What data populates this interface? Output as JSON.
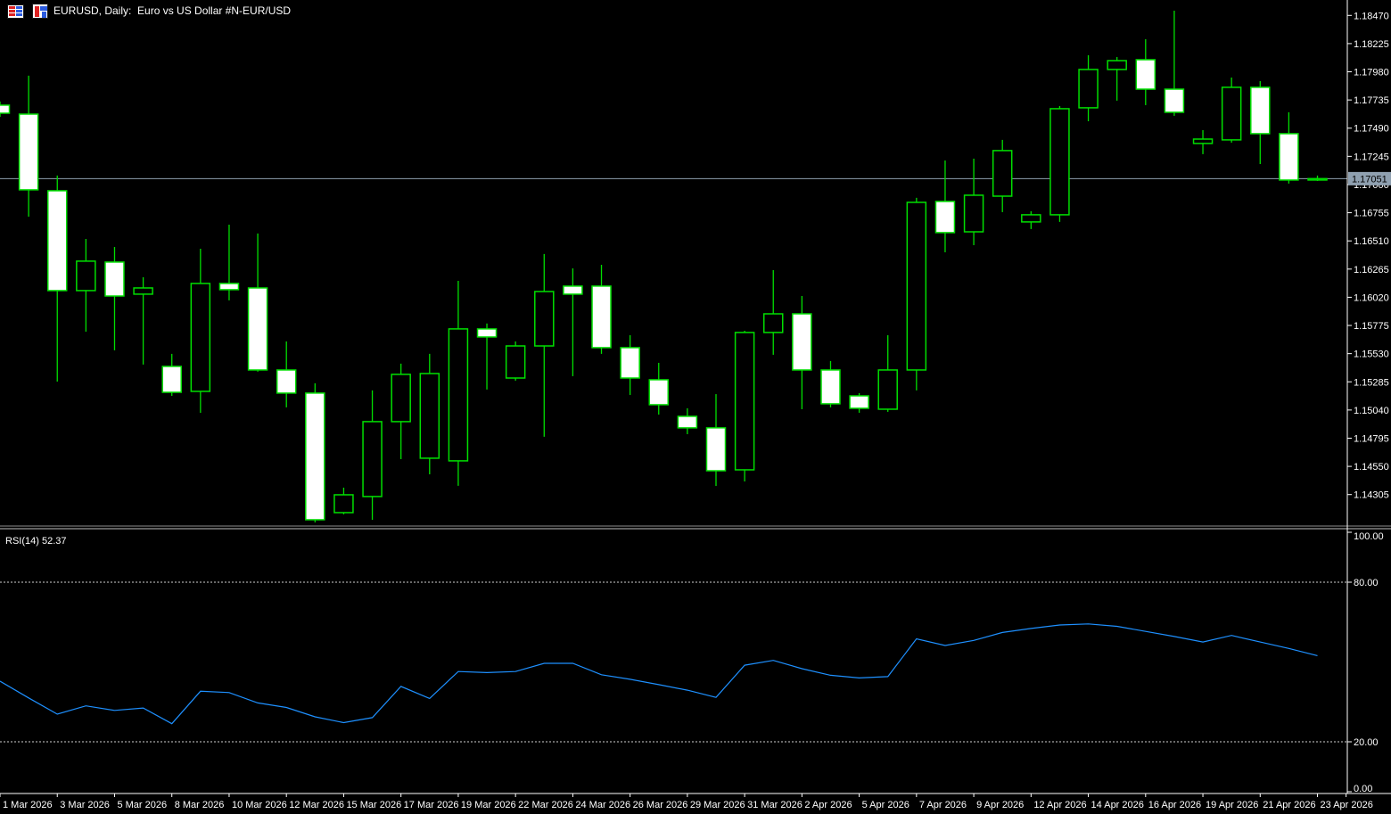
{
  "window": {
    "title": "EURUSD, Daily:  Euro vs US Dollar #N-EUR/USD",
    "icons": [
      {
        "name": "table-icon"
      },
      {
        "name": "chart-bars-icon"
      }
    ]
  },
  "colors": {
    "background": "#000000",
    "axis_text": "#FFFFFF",
    "axis_line": "#FFFFFF",
    "candle_outline": "#00DF00",
    "bull_fill": "#000000",
    "bear_fill": "#FFFFFF",
    "price_line": "#8FA0B0",
    "price_badge_text": "#000000",
    "rsi_line": "#1E90FF",
    "level_dash": "#CFCFCF",
    "separator": "#C0C0C0"
  },
  "main_panel": {
    "price_labels": [
      "1.18470",
      "1.18225",
      "1.17980",
      "1.17735",
      "1.17490",
      "1.17245",
      "1.17000",
      "1.16755",
      "1.16510",
      "1.16265",
      "1.16020",
      "1.15775",
      "1.15530",
      "1.15285",
      "1.15040",
      "1.14795",
      "1.14550",
      "1.14305"
    ],
    "current_price_label": "1.17051"
  },
  "rsi_panel": {
    "label": "RSI(14) 52.37",
    "level_labels": [
      "100.00",
      "80.00",
      "20.00",
      "0.00"
    ]
  },
  "date_axis": {
    "labels": [
      "1 Mar 2026",
      "3 Mar 2026",
      "5 Mar 2026",
      "8 Mar 2026",
      "10 Mar 2026",
      "12 Mar 2026",
      "15 Mar 2026",
      "17 Mar 2026",
      "19 Mar 2026",
      "22 Mar 2026",
      "24 Mar 2026",
      "26 Mar 2026",
      "29 Mar 2026",
      "31 Mar 2026",
      "2 Apr 2026",
      "5 Apr 2026",
      "7 Apr 2026",
      "9 Apr 2026",
      "12 Apr 2026",
      "14 Apr 2026",
      "16 Apr 2026",
      "19 Apr 2026",
      "21 Apr 2026",
      "23 Apr 2026"
    ]
  },
  "chart_data": {
    "type": "candlestick",
    "title": "EURUSD, Daily:  Euro vs US Dollar #N-EUR/USD",
    "symbol": "EURUSD",
    "timeframe": "Daily",
    "grid": false,
    "y_axis": {
      "side": "right",
      "ticks": [
        1.1847,
        1.18225,
        1.1798,
        1.17735,
        1.1749,
        1.17245,
        1.17,
        1.16755,
        1.1651,
        1.16265,
        1.1602,
        1.15775,
        1.1553,
        1.15285,
        1.1504,
        1.14795,
        1.1455,
        1.14305
      ],
      "top_price": 1.18604,
      "bottom_price": 1.14047
    },
    "current_price": 1.17051,
    "x_axis": {
      "labels": [
        "1 Mar 2026",
        "3 Mar 2026",
        "5 Mar 2026",
        "8 Mar 2026",
        "10 Mar 2026",
        "12 Mar 2026",
        "15 Mar 2026",
        "17 Mar 2026",
        "19 Mar 2026",
        "22 Mar 2026",
        "24 Mar 2026",
        "26 Mar 2026",
        "29 Mar 2026",
        "31 Mar 2026",
        "2 Apr 2026",
        "5 Apr 2026",
        "7 Apr 2026",
        "9 Apr 2026",
        "12 Apr 2026",
        "14 Apr 2026",
        "16 Apr 2026",
        "19 Apr 2026",
        "21 Apr 2026",
        "23 Apr 2026"
      ],
      "label_every_n_candles": 2
    },
    "candles": [
      {
        "date": "1 Mar 2026",
        "o": 1.1769,
        "h": 1.17721,
        "l": 1.17589,
        "c": 1.1762
      },
      {
        "date": "2 Mar 2026",
        "o": 1.17612,
        "h": 1.17946,
        "l": 1.16721,
        "c": 1.16954
      },
      {
        "date": "3 Mar 2026",
        "o": 1.16946,
        "h": 1.17078,
        "l": 1.15287,
        "c": 1.16078
      },
      {
        "date": "4 Mar 2026",
        "o": 1.16078,
        "h": 1.16527,
        "l": 1.15721,
        "c": 1.16334
      },
      {
        "date": "5 Mar 2026",
        "o": 1.16326,
        "h": 1.16457,
        "l": 1.15559,
        "c": 1.16031
      },
      {
        "date": "6 Mar 2026",
        "o": 1.16047,
        "h": 1.16194,
        "l": 1.15435,
        "c": 1.16101
      },
      {
        "date": "8 Mar 2026",
        "o": 1.15419,
        "h": 1.15528,
        "l": 1.15163,
        "c": 1.15194
      },
      {
        "date": "9 Mar 2026",
        "o": 1.15202,
        "h": 1.16442,
        "l": 1.15016,
        "c": 1.1614
      },
      {
        "date": "10 Mar 2026",
        "o": 1.1614,
        "h": 1.16651,
        "l": 1.15993,
        "c": 1.16086
      },
      {
        "date": "11 Mar 2026",
        "o": 1.16101,
        "h": 1.16574,
        "l": 1.15373,
        "c": 1.15388
      },
      {
        "date": "12 Mar 2026",
        "o": 1.15388,
        "h": 1.15636,
        "l": 1.15063,
        "c": 1.15187
      },
      {
        "date": "13 Mar 2026",
        "o": 1.15187,
        "h": 1.15272,
        "l": 1.14063,
        "c": 1.14086
      },
      {
        "date": "15 Mar 2026",
        "o": 1.14148,
        "h": 1.14365,
        "l": 1.14133,
        "c": 1.14303
      },
      {
        "date": "16 Mar 2026",
        "o": 1.14288,
        "h": 1.1521,
        "l": 1.14086,
        "c": 1.14939
      },
      {
        "date": "17 Mar 2026",
        "o": 1.14939,
        "h": 1.15443,
        "l": 1.14613,
        "c": 1.1535
      },
      {
        "date": "18 Mar 2026",
        "o": 1.14621,
        "h": 1.15528,
        "l": 1.14481,
        "c": 1.15357
      },
      {
        "date": "19 Mar 2026",
        "o": 1.14598,
        "h": 1.16163,
        "l": 1.14381,
        "c": 1.15745
      },
      {
        "date": "20 Mar 2026",
        "o": 1.15745,
        "h": 1.15792,
        "l": 1.15218,
        "c": 1.15675
      },
      {
        "date": "22 Mar 2026",
        "o": 1.15318,
        "h": 1.15636,
        "l": 1.15295,
        "c": 1.15597
      },
      {
        "date": "23 Mar 2026",
        "o": 1.15597,
        "h": 1.16396,
        "l": 1.14807,
        "c": 1.1607
      },
      {
        "date": "24 Mar 2026",
        "o": 1.16117,
        "h": 1.16271,
        "l": 1.15334,
        "c": 1.16047
      },
      {
        "date": "25 Mar 2026",
        "o": 1.16117,
        "h": 1.16302,
        "l": 1.15528,
        "c": 1.15582
      },
      {
        "date": "26 Mar 2026",
        "o": 1.15582,
        "h": 1.1569,
        "l": 1.15171,
        "c": 1.15318
      },
      {
        "date": "27 Mar 2026",
        "o": 1.15303,
        "h": 1.1545,
        "l": 1.15,
        "c": 1.15086
      },
      {
        "date": "29 Mar 2026",
        "o": 1.14985,
        "h": 1.15055,
        "l": 1.1483,
        "c": 1.14885
      },
      {
        "date": "30 Mar 2026",
        "o": 1.14885,
        "h": 1.15178,
        "l": 1.1438,
        "c": 1.14512
      },
      {
        "date": "31 Mar 2026",
        "o": 1.1452,
        "h": 1.15729,
        "l": 1.14419,
        "c": 1.15714
      },
      {
        "date": "1 Apr 2026",
        "o": 1.15714,
        "h": 1.16256,
        "l": 1.1552,
        "c": 1.15876
      },
      {
        "date": "2 Apr 2026",
        "o": 1.15876,
        "h": 1.16031,
        "l": 1.15047,
        "c": 1.15388
      },
      {
        "date": "3 Apr 2026",
        "o": 1.15388,
        "h": 1.15466,
        "l": 1.15063,
        "c": 1.15094
      },
      {
        "date": "5 Apr 2026",
        "o": 1.15163,
        "h": 1.15187,
        "l": 1.15016,
        "c": 1.15055
      },
      {
        "date": "6 Apr 2026",
        "o": 1.15047,
        "h": 1.1569,
        "l": 1.15024,
        "c": 1.15388
      },
      {
        "date": "7 Apr 2026",
        "o": 1.15388,
        "h": 1.16884,
        "l": 1.1521,
        "c": 1.16845
      },
      {
        "date": "8 Apr 2026",
        "o": 1.16853,
        "h": 1.17209,
        "l": 1.16411,
        "c": 1.16582
      },
      {
        "date": "9 Apr 2026",
        "o": 1.16589,
        "h": 1.17225,
        "l": 1.16473,
        "c": 1.16907
      },
      {
        "date": "10 Apr 2026",
        "o": 1.16899,
        "h": 1.17388,
        "l": 1.1676,
        "c": 1.17295
      },
      {
        "date": "12 Apr 2026",
        "o": 1.16675,
        "h": 1.16768,
        "l": 1.16613,
        "c": 1.16737
      },
      {
        "date": "13 Apr 2026",
        "o": 1.16737,
        "h": 1.17682,
        "l": 1.16675,
        "c": 1.17659
      },
      {
        "date": "14 Apr 2026",
        "o": 1.17667,
        "h": 1.18124,
        "l": 1.1755,
        "c": 1.18
      },
      {
        "date": "15 Apr 2026",
        "o": 1.18,
        "h": 1.18108,
        "l": 1.17729,
        "c": 1.18077
      },
      {
        "date": "16 Apr 2026",
        "o": 1.18085,
        "h": 1.18263,
        "l": 1.1769,
        "c": 1.17829
      },
      {
        "date": "17 Apr 2026",
        "o": 1.17829,
        "h": 1.18511,
        "l": 1.17597,
        "c": 1.17628
      },
      {
        "date": "19 Apr 2026",
        "o": 1.17357,
        "h": 1.17473,
        "l": 1.17264,
        "c": 1.17395
      },
      {
        "date": "20 Apr 2026",
        "o": 1.17388,
        "h": 1.1793,
        "l": 1.17364,
        "c": 1.17845
      },
      {
        "date": "21 Apr 2026",
        "o": 1.17845,
        "h": 1.17899,
        "l": 1.17178,
        "c": 1.17442
      },
      {
        "date": "22 Apr 2026",
        "o": 1.17442,
        "h": 1.17628,
        "l": 1.17008,
        "c": 1.17039
      },
      {
        "date": "23 Apr 2026",
        "o": 1.17039,
        "h": 1.17078,
        "l": 1.17031,
        "c": 1.17051
      }
    ],
    "rsi": {
      "type": "line",
      "name": "RSI",
      "period": 14,
      "current_value": 52.37,
      "range": [
        0,
        100
      ],
      "levels": {
        "overbought": 80,
        "oversold": 20
      },
      "axis_labels": [
        100.0,
        80.0,
        20.0,
        0.0
      ],
      "values": [
        42.8,
        36.5,
        30.4,
        33.5,
        31.8,
        32.7,
        26.8,
        39.0,
        38.5,
        34.6,
        32.9,
        29.4,
        27.2,
        29.1,
        40.8,
        36.3,
        46.4,
        46.0,
        46.4,
        49.5,
        49.5,
        45.2,
        43.5,
        41.5,
        39.4,
        36.7,
        48.8,
        50.6,
        47.5,
        45.0,
        44.0,
        44.5,
        58.7,
        56.2,
        58.1,
        61.1,
        62.6,
        63.9,
        64.3,
        63.4,
        61.5,
        59.6,
        57.5,
        60.0,
        57.5,
        55.1,
        52.37
      ]
    }
  }
}
